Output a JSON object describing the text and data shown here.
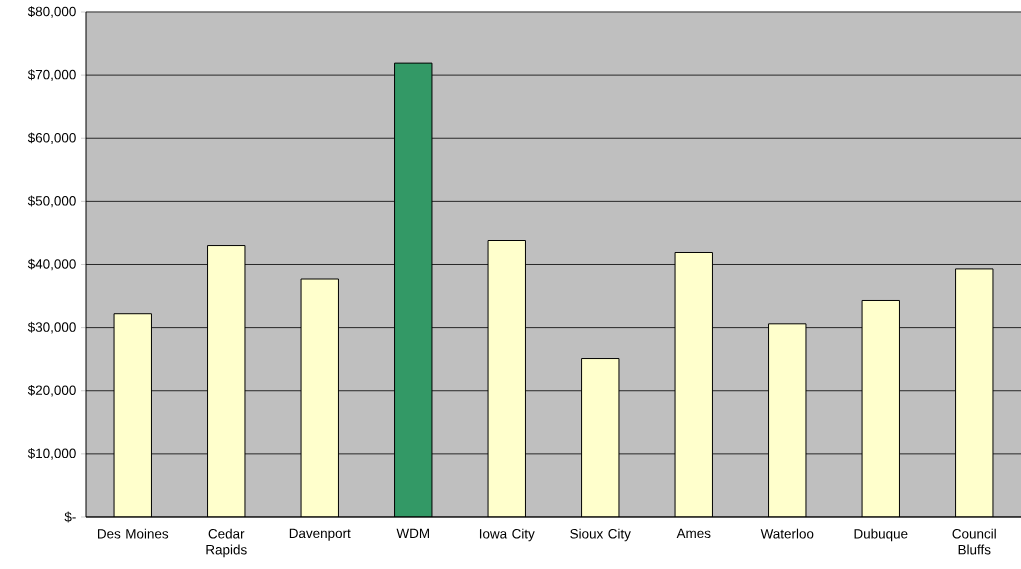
{
  "chart_data": {
    "type": "bar",
    "categories": [
      "Des Moines",
      "Cedar Rapids",
      "Davenport",
      "WDM",
      "Iowa City",
      "Sioux City",
      "Ames",
      "Waterloo",
      "Dubuque",
      "Council Bluffs"
    ],
    "values": [
      32200,
      43000,
      37700,
      71900,
      43800,
      25100,
      41900,
      30600,
      34300,
      39300
    ],
    "colors": [
      "#ffffcc",
      "#ffffcc",
      "#ffffcc",
      "#339966",
      "#ffffcc",
      "#ffffcc",
      "#ffffcc",
      "#ffffcc",
      "#ffffcc",
      "#ffffcc"
    ],
    "ylim": [
      0,
      80000
    ],
    "yticks": [
      {
        "value": 0,
        "label": "$-"
      },
      {
        "value": 10000,
        "label": "$10,000"
      },
      {
        "value": 20000,
        "label": "$20,000"
      },
      {
        "value": 30000,
        "label": "$30,000"
      },
      {
        "value": 40000,
        "label": "$40,000"
      },
      {
        "value": 50000,
        "label": "$50,000"
      },
      {
        "value": 60000,
        "label": "$60,000"
      },
      {
        "value": 70000,
        "label": "$70,000"
      },
      {
        "value": 80000,
        "label": "$80,000"
      }
    ],
    "grid": "y"
  }
}
